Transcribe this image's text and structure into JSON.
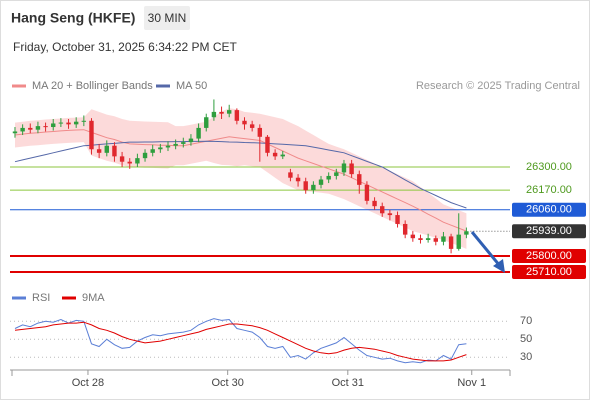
{
  "header": {
    "title": "Hang Seng (HKFE)",
    "interval": "30 MIN",
    "timestamp": "Friday, October 31, 2025 6:34:22 PM CET",
    "credit": "Research © 2025 Trading Central"
  },
  "chart_data": [
    {
      "type": "candlestick",
      "up_color": "#2e9e3e",
      "down_color": "#e0282e",
      "xlim": [
        -0.65,
        64.7
      ],
      "ylim": [
        25665,
        26705
      ],
      "ohlc": [
        [
          26490,
          26525,
          26465,
          26500
        ],
        [
          26500,
          26540,
          26480,
          26520
        ],
        [
          26520,
          26545,
          26490,
          26510
        ],
        [
          26510,
          26555,
          26490,
          26530
        ],
        [
          26530,
          26550,
          26500,
          26525
        ],
        [
          26525,
          26570,
          26505,
          26545
        ],
        [
          26545,
          26575,
          26525,
          26550
        ],
        [
          26550,
          26570,
          26515,
          26540
        ],
        [
          26540,
          26580,
          26520,
          26555
        ],
        [
          26555,
          26590,
          26530,
          26560
        ],
        [
          26560,
          26575,
          26370,
          26400
        ],
        [
          26400,
          26430,
          26350,
          26380
        ],
        [
          26380,
          26450,
          26360,
          26420
        ],
        [
          26420,
          26440,
          26330,
          26360
        ],
        [
          26360,
          26385,
          26300,
          26330
        ],
        [
          26330,
          26350,
          26290,
          26320
        ],
        [
          26320,
          26375,
          26300,
          26350
        ],
        [
          26350,
          26400,
          26330,
          26380
        ],
        [
          26380,
          26425,
          26360,
          26400
        ],
        [
          26400,
          26430,
          26380,
          26410
        ],
        [
          26410,
          26445,
          26390,
          26420
        ],
        [
          26420,
          26455,
          26400,
          26430
        ],
        [
          26430,
          26465,
          26410,
          26440
        ],
        [
          26440,
          26485,
          26420,
          26460
        ],
        [
          26460,
          26545,
          26440,
          26520
        ],
        [
          26520,
          26600,
          26500,
          26580
        ],
        [
          26580,
          26680,
          26560,
          26610
        ],
        [
          26610,
          26640,
          26570,
          26600
        ],
        [
          26600,
          26650,
          26580,
          26620
        ],
        [
          26620,
          26630,
          26540,
          26560
        ],
        [
          26560,
          26580,
          26510,
          26540
        ],
        [
          26540,
          26560,
          26500,
          26520
        ],
        [
          26520,
          26540,
          26330,
          26470
        ],
        [
          26470,
          26480,
          26360,
          26380
        ],
        [
          26380,
          26400,
          26340,
          26360
        ],
        [
          26360,
          26390,
          26345,
          26370
        ],
        [
          26270,
          26290,
          26220,
          26240
        ],
        [
          26240,
          26260,
          26190,
          26220
        ],
        [
          26220,
          26240,
          26150,
          26170
        ],
        [
          26170,
          26220,
          26150,
          26200
        ],
        [
          26200,
          26250,
          26180,
          26230
        ],
        [
          26230,
          26270,
          26210,
          26250
        ],
        [
          26250,
          26290,
          26230,
          26270
        ],
        [
          26270,
          26340,
          26250,
          26320
        ],
        [
          26320,
          26340,
          26240,
          26260
        ],
        [
          26260,
          26280,
          26150,
          26200
        ],
        [
          26200,
          26220,
          26090,
          26110
        ],
        [
          26110,
          26130,
          26060,
          26080
        ],
        [
          26080,
          26100,
          26020,
          26040
        ],
        [
          26040,
          26060,
          26000,
          26030
        ],
        [
          26030,
          26050,
          25960,
          25980
        ],
        [
          25980,
          26000,
          25900,
          25920
        ],
        [
          25920,
          25940,
          25880,
          25900
        ],
        [
          25900,
          25920,
          25870,
          25890
        ],
        [
          25890,
          25925,
          25875,
          25900
        ],
        [
          25900,
          25915,
          25860,
          25880
        ],
        [
          25880,
          25935,
          25860,
          25910
        ],
        [
          25910,
          25925,
          25815,
          25840
        ],
        [
          25840,
          26040,
          25830,
          25920
        ],
        [
          25920,
          25960,
          25900,
          25939
        ]
      ],
      "series": [
        {
          "name": "MA 20 + Bollinger Bands",
          "color": "#f08a8a",
          "band_color": "#fbd3d3",
          "values": [
            26480,
            26485,
            26490,
            26493,
            26497,
            26500,
            26503,
            26506,
            26508,
            26510,
            26495,
            26480,
            26465,
            26455,
            26440,
            26430,
            26428,
            26426,
            26425,
            26423,
            26422,
            26420,
            26420,
            26428,
            26437,
            26445,
            26453,
            26462,
            26470,
            26465,
            26460,
            26455,
            26450,
            26430,
            26410,
            26390,
            26370,
            26350,
            26335,
            26320,
            26305,
            26290,
            26275,
            26260,
            26240,
            26220,
            26200,
            26180,
            26160,
            26140,
            26120,
            26100,
            26080,
            26058,
            26035,
            26013,
            25990,
            25973,
            25957,
            25940
          ],
          "upper": [
            26550,
            26555,
            26560,
            26563,
            26567,
            26570,
            26573,
            26576,
            26578,
            26580,
            26625,
            26610,
            26595,
            26585,
            26570,
            26560,
            26558,
            26556,
            26555,
            26553,
            26552,
            26530,
            26530,
            26538,
            26547,
            26555,
            26583,
            26612,
            26630,
            26625,
            26610,
            26605,
            26600,
            26590,
            26580,
            26570,
            26550,
            26530,
            26505,
            26480,
            26455,
            26430,
            26415,
            26400,
            26380,
            26360,
            26340,
            26320,
            26300,
            26280,
            26260,
            26240,
            26220,
            26188,
            26155,
            26123,
            26090,
            26073,
            26057,
            26040
          ],
          "lower": [
            26410,
            26415,
            26420,
            26423,
            26427,
            26430,
            26433,
            26436,
            26438,
            26440,
            26365,
            26350,
            26335,
            26325,
            26310,
            26300,
            26298,
            26296,
            26295,
            26293,
            26292,
            26310,
            26310,
            26318,
            26327,
            26335,
            26323,
            26312,
            26310,
            26305,
            26310,
            26305,
            26300,
            26270,
            26240,
            26210,
            26190,
            26170,
            26165,
            26160,
            26155,
            26150,
            26135,
            26120,
            26100,
            26080,
            26060,
            26040,
            26020,
            26000,
            25980,
            25960,
            25940,
            25928,
            25915,
            25903,
            25890,
            25873,
            25857,
            25840
          ]
        },
        {
          "name": "MA 50",
          "color": "#5568a8",
          "values": [
            26330,
            26340,
            26350,
            26360,
            26370,
            26380,
            26390,
            26400,
            26410,
            26420,
            26423,
            26427,
            26430,
            26433,
            26437,
            26440,
            26440,
            26441,
            26441,
            26442,
            26442,
            26443,
            26443,
            26444,
            26444,
            26445,
            26444,
            26443,
            26441,
            26440,
            26438,
            26437,
            26435,
            26433,
            26430,
            26428,
            26425,
            26423,
            26420,
            26412,
            26404,
            26396,
            26388,
            26380,
            26364,
            26348,
            26332,
            26316,
            26300,
            26276,
            26252,
            26228,
            26204,
            26180,
            26160,
            26140,
            26120,
            26100,
            26085,
            26070
          ]
        }
      ],
      "levels": [
        {
          "value": 26300,
          "label": "26300.00",
          "color": "#8cc63f",
          "text_color": "#4f9a1f",
          "boxed": false,
          "style": "solid"
        },
        {
          "value": 26170,
          "label": "26170.00",
          "color": "#8cc63f",
          "text_color": "#4f9a1f",
          "boxed": false,
          "style": "solid"
        },
        {
          "value": 26060,
          "label": "26060.00",
          "color": "#1f5bd6",
          "text_color": "#ffffff",
          "boxed": true,
          "style": "solid"
        },
        {
          "value": 25939,
          "label": "25939.00",
          "color": "#333333",
          "text_color": "#ffffff",
          "boxed": true,
          "style": "dotted"
        },
        {
          "value": 25800,
          "label": "25800.00",
          "color": "#e00000",
          "text_color": "#ffffff",
          "boxed": true,
          "style": "thick"
        },
        {
          "value": 25710,
          "label": "25710.00",
          "color": "#e00000",
          "text_color": "#ffffff",
          "boxed": true,
          "style": "thick"
        }
      ]
    },
    {
      "type": "line",
      "xlim": [
        -0.65,
        64.7
      ],
      "ylim": [
        17,
        77
      ],
      "yticks": [
        70,
        50,
        30
      ],
      "xticks": [
        {
          "value": 9.54,
          "label": "Oct 28"
        },
        {
          "value": 27.8,
          "label": "Oct 30"
        },
        {
          "value": 43.5,
          "label": "Oct 31"
        },
        {
          "value": 59.7,
          "label": "Nov 1"
        }
      ],
      "series": [
        {
          "name": "RSI",
          "color": "#5b7fd6",
          "values": [
            62,
            66,
            64,
            68,
            70,
            69,
            72,
            68,
            71,
            70,
            45,
            42,
            50,
            44,
            40,
            41,
            48,
            52,
            55,
            54,
            56,
            57,
            58,
            60,
            66,
            70,
            73,
            71,
            72,
            62,
            60,
            58,
            52,
            42,
            40,
            42,
            30,
            32,
            28,
            35,
            40,
            43,
            46,
            52,
            45,
            38,
            32,
            30,
            28,
            29,
            26,
            24,
            25,
            24,
            27,
            26,
            32,
            28,
            44,
            45
          ]
        },
        {
          "name": "9MA",
          "color": "#e00000",
          "values": [
            60,
            61,
            62,
            63,
            64,
            66,
            67,
            68,
            68,
            69,
            66,
            62,
            60,
            57,
            53,
            50,
            48,
            46,
            47,
            48,
            50,
            52,
            54,
            56,
            58,
            61,
            63,
            65,
            67,
            67,
            66,
            65,
            63,
            60,
            56,
            52,
            48,
            44,
            40,
            37,
            35,
            34,
            35,
            38,
            40,
            41,
            40,
            39,
            37,
            35,
            32,
            30,
            28,
            27,
            26,
            26,
            26,
            27,
            30,
            33
          ]
        }
      ]
    }
  ]
}
